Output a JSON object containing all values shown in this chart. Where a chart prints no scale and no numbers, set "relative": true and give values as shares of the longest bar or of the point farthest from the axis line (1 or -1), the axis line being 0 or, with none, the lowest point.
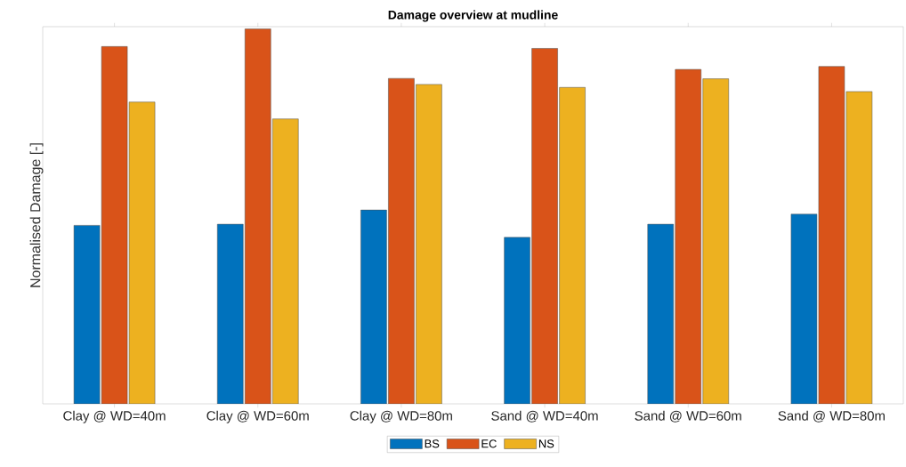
{
  "chart_data": {
    "type": "bar",
    "title": "Damage overview at mudline",
    "ylabel": "Normalised Damage [-]",
    "relative": true,
    "legend": "bottom",
    "categories": [
      "Clay @ WD=40m",
      "Clay @ WD=60m",
      "Clay @ WD=80m",
      "Sand @ WD=40m",
      "Sand @ WD=60m",
      "Sand @ WD=80m"
    ],
    "series": [
      {
        "name": "BS",
        "color": "#0072bd",
        "values": [
          0.476,
          0.479,
          0.517,
          0.444,
          0.479,
          0.506
        ]
      },
      {
        "name": "EC",
        "color": "#d95319",
        "values": [
          0.953,
          1,
          0.868,
          0.948,
          0.892,
          0.9
        ]
      },
      {
        "name": "NS",
        "color": "#edb120",
        "values": [
          0.805,
          0.76,
          0.852,
          0.844,
          0.867,
          0.833
        ]
      }
    ]
  }
}
